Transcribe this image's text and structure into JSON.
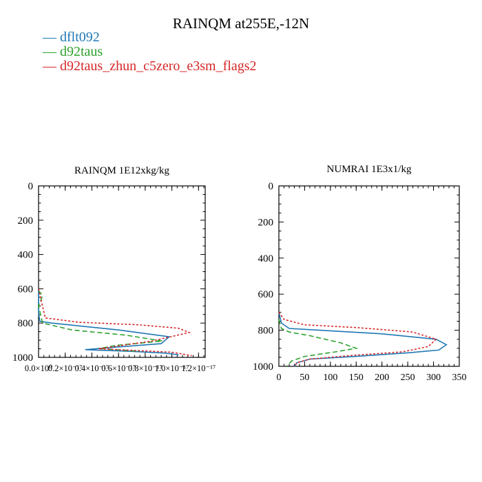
{
  "figure_title": "RAINQM at255E,-12N",
  "legend": [
    {
      "label": "dflt092",
      "color": "#1f77b4",
      "dash": "solid"
    },
    {
      "label": "d92taus",
      "color": "#2ca02c",
      "dash": "dashed"
    },
    {
      "label": "d92taus_zhun_c5zero_e3sm_flags2",
      "color": "#d62728",
      "dash": "dotted"
    }
  ],
  "chart_data": [
    {
      "type": "line",
      "title": "RAINQM  1E12xkg/kg",
      "xlim": [
        0,
        1.25e-17
      ],
      "ylim": [
        1000,
        0
      ],
      "y_inverted": true,
      "xticks": [
        0,
        2e-18,
        4e-18,
        6e-18,
        8e-18,
        1e-17,
        1.2e-17
      ],
      "xtick_labels": [
        "0.0×10⁰",
        "0.2×10⁻¹⁷",
        "0.4×10⁻¹⁷",
        "0.6×10⁻¹⁷",
        "0.8×10⁻¹⁷",
        "1.0×10⁻¹⁷",
        "1.2×10⁻¹⁷"
      ],
      "yticks": [
        0,
        200,
        400,
        600,
        800,
        1000
      ],
      "series": [
        {
          "name": "dflt092",
          "color": "#1f77b4",
          "dash": "solid",
          "x": [
            0,
            0,
            1e-19,
            1e-18,
            6e-18,
            9.8e-18,
            9.2e-18,
            5e-18,
            3.5e-18,
            7e-18,
            9.5e-18,
            1.05e-17
          ],
          "y": [
            600,
            740,
            790,
            800,
            840,
            880,
            920,
            945,
            955,
            965,
            975,
            985
          ]
        },
        {
          "name": "d92taus",
          "color": "#2ca02c",
          "dash": "dashed",
          "x": [
            0,
            3e-19,
            0,
            3e-19,
            2.5e-18,
            6.5e-18,
            9.3e-18,
            5.8e-18,
            4.6e-18,
            7.5e-18
          ],
          "y": [
            610,
            640,
            700,
            800,
            840,
            870,
            905,
            930,
            948,
            965
          ]
        },
        {
          "name": "d92taus_zhun_c5zero_e3sm_flags2",
          "color": "#d62728",
          "dash": "dotted",
          "x": [
            0,
            5e-19,
            3e-18,
            7.5e-18,
            1.05e-17,
            1.13e-17,
            8.5e-18,
            4.5e-18,
            1e-17,
            1.15e-17
          ],
          "y": [
            600,
            770,
            795,
            810,
            830,
            855,
            905,
            950,
            970,
            990
          ]
        }
      ]
    },
    {
      "type": "line",
      "title": "NUMRAI  1E3x1/kg",
      "xlim": [
        0,
        350
      ],
      "ylim": [
        1000,
        0
      ],
      "y_inverted": true,
      "xticks": [
        0,
        50,
        100,
        150,
        200,
        250,
        300,
        350
      ],
      "xtick_labels": [
        "0",
        "50",
        "100",
        "150",
        "200",
        "250",
        "300",
        "350"
      ],
      "yticks": [
        0,
        200,
        400,
        600,
        800,
        1000
      ],
      "series": [
        {
          "name": "dflt092",
          "color": "#1f77b4",
          "dash": "solid",
          "x": [
            0,
            5,
            20,
            80,
            200,
            305,
            325,
            310,
            250,
            150,
            60,
            35,
            30
          ],
          "y": [
            700,
            760,
            790,
            800,
            820,
            850,
            880,
            910,
            925,
            945,
            960,
            980,
            1000
          ]
        },
        {
          "name": "d92taus",
          "color": "#2ca02c",
          "dash": "dashed",
          "x": [
            0,
            5,
            20,
            60,
            120,
            150,
            110,
            50,
            25,
            15
          ],
          "y": [
            740,
            790,
            810,
            830,
            870,
            900,
            920,
            945,
            970,
            1000
          ]
        },
        {
          "name": "d92taus_zhun_c5zero_e3sm_flags2",
          "color": "#d62728",
          "dash": "dotted",
          "x": [
            0,
            10,
            50,
            150,
            260,
            305,
            290,
            240,
            140,
            60,
            35,
            30
          ],
          "y": [
            700,
            740,
            770,
            785,
            810,
            850,
            890,
            920,
            940,
            960,
            980,
            1000
          ]
        }
      ]
    }
  ]
}
